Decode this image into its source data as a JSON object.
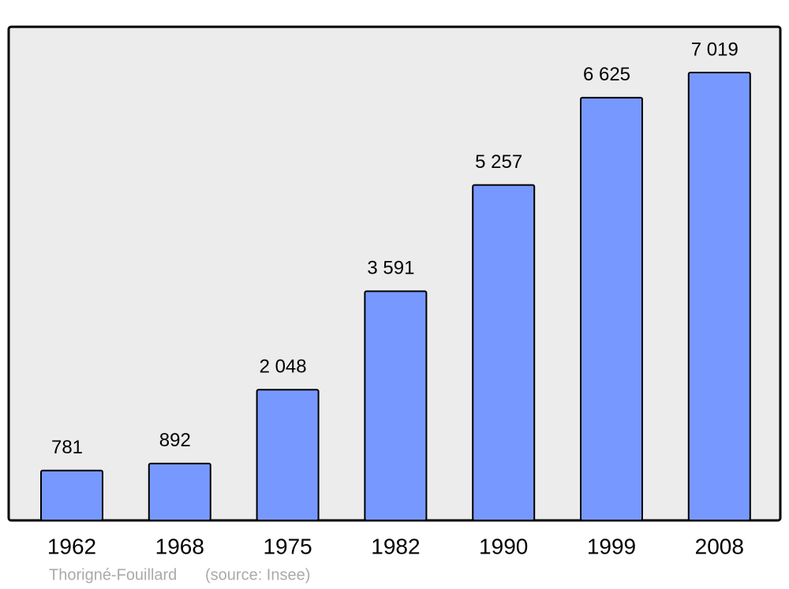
{
  "chart_data": {
    "type": "bar",
    "categories": [
      "1962",
      "1968",
      "1975",
      "1982",
      "1990",
      "1999",
      "2008"
    ],
    "values": [
      781,
      892,
      2048,
      3591,
      5257,
      6625,
      7019
    ],
    "value_labels": [
      "781",
      "892",
      "2 048",
      "3 591",
      "5 257",
      "6 625",
      "7 019"
    ],
    "color": "#7799ff",
    "place": "Thorigné-Fouillard",
    "source": "(source: Insee)"
  }
}
